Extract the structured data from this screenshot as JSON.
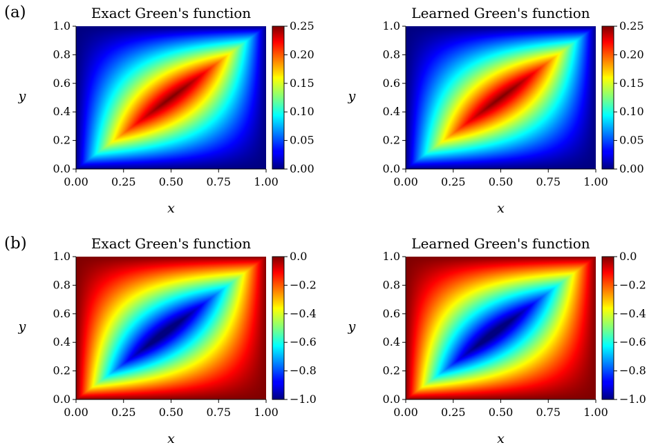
{
  "panel_labels": [
    "(a)",
    "(b)"
  ],
  "chart_data": [
    {
      "type": "heatmap",
      "panel": "(a)",
      "title": "Exact Green's function",
      "xlabel": "x",
      "ylabel": "y",
      "xlim": [
        0,
        1
      ],
      "ylim": [
        0,
        1
      ],
      "xticks": [
        "0.00",
        "0.25",
        "0.50",
        "0.75",
        "1.00"
      ],
      "yticks": [
        "0.0",
        "0.2",
        "0.4",
        "0.6",
        "0.8",
        "1.0"
      ],
      "colormap": "jet",
      "clim": [
        0,
        0.25
      ],
      "colorbar_ticks": [
        "0.00",
        "0.05",
        "0.10",
        "0.15",
        "0.20",
        "0.25"
      ],
      "function": "G(x,y) = min(x,y)*(1-max(x,y))"
    },
    {
      "type": "heatmap",
      "panel": "(a)",
      "title": "Learned Green's function",
      "xlabel": "x",
      "ylabel": "y",
      "xlim": [
        0,
        1
      ],
      "ylim": [
        0,
        1
      ],
      "xticks": [
        "0.00",
        "0.25",
        "0.50",
        "0.75",
        "1.00"
      ],
      "yticks": [
        "0.0",
        "0.2",
        "0.4",
        "0.6",
        "0.8",
        "1.0"
      ],
      "colormap": "jet",
      "clim": [
        0,
        0.25
      ],
      "colorbar_ticks": [
        "0.00",
        "0.05",
        "0.10",
        "0.15",
        "0.20",
        "0.25"
      ],
      "function": "G(x,y) = min(x,y)*(1-max(x,y))"
    },
    {
      "type": "heatmap",
      "panel": "(b)",
      "title": "Exact Green's function",
      "xlabel": "x",
      "ylabel": "y",
      "xlim": [
        0,
        1
      ],
      "ylim": [
        0,
        1
      ],
      "xticks": [
        "0.00",
        "0.25",
        "0.50",
        "0.75",
        "1.00"
      ],
      "yticks": [
        "0.0",
        "0.2",
        "0.4",
        "0.6",
        "0.8",
        "1.0"
      ],
      "colormap": "jet",
      "clim": [
        -1.0,
        0.0
      ],
      "colorbar_ticks": [
        "−1.0",
        "−0.8",
        "−0.6",
        "−0.4",
        "−0.2",
        "0.0"
      ],
      "function": "normalized negative Green's function, minimum -1.0 near (0.45, 0.5)"
    },
    {
      "type": "heatmap",
      "panel": "(b)",
      "title": "Learned Green's function",
      "xlabel": "x",
      "ylabel": "y",
      "xlim": [
        0,
        1
      ],
      "ylim": [
        0,
        1
      ],
      "xticks": [
        "0.00",
        "0.25",
        "0.50",
        "0.75",
        "1.00"
      ],
      "yticks": [
        "0.0",
        "0.2",
        "0.4",
        "0.6",
        "0.8",
        "1.0"
      ],
      "colormap": "jet",
      "clim": [
        -1.0,
        0.0
      ],
      "colorbar_ticks": [
        "−1.0",
        "−0.8",
        "−0.6",
        "−0.4",
        "−0.2",
        "0.0"
      ],
      "function": "normalized negative Green's function, minimum -1.0 near (0.45, 0.5)"
    }
  ]
}
